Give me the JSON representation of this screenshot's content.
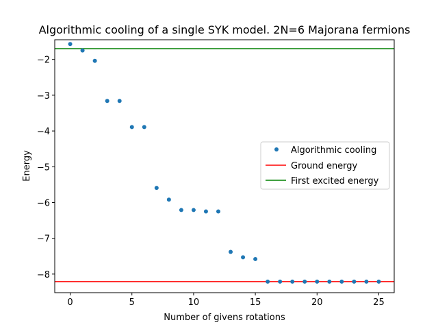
{
  "chart_data": {
    "type": "scatter",
    "title": "Algorithmic cooling of a single SYK model. 2N=6 Majorana fermions",
    "xlabel": "Number of givens rotations",
    "ylabel": "Energy",
    "xlim": [
      -1.25,
      26.25
    ],
    "ylim": [
      -8.52,
      -1.45
    ],
    "xticks": [
      0,
      5,
      10,
      15,
      20,
      25
    ],
    "yticks": [
      -8,
      -7,
      -6,
      -5,
      -4,
      -3,
      -2
    ],
    "grid": false,
    "legend_position": "center-right",
    "series": [
      {
        "name": "Algorithmic cooling",
        "kind": "scatter",
        "color": "#1f77b4",
        "x": [
          0,
          1,
          2,
          3,
          4,
          5,
          6,
          7,
          8,
          9,
          10,
          11,
          12,
          13,
          14,
          15,
          16,
          17,
          18,
          19,
          20,
          21,
          22,
          23,
          24,
          25
        ],
        "y": [
          -1.57,
          -1.75,
          -2.04,
          -3.16,
          -3.16,
          -3.89,
          -3.89,
          -5.59,
          -5.92,
          -6.21,
          -6.21,
          -6.25,
          -6.25,
          -7.38,
          -7.53,
          -7.58,
          -8.21,
          -8.21,
          -8.21,
          -8.21,
          -8.21,
          -8.21,
          -8.21,
          -8.21,
          -8.21,
          -8.21
        ]
      },
      {
        "name": "Ground energy",
        "kind": "hline",
        "color": "#ff0000",
        "y": -8.21
      },
      {
        "name": "First excited energy",
        "kind": "hline",
        "color": "#008000",
        "y": -1.7
      }
    ]
  }
}
